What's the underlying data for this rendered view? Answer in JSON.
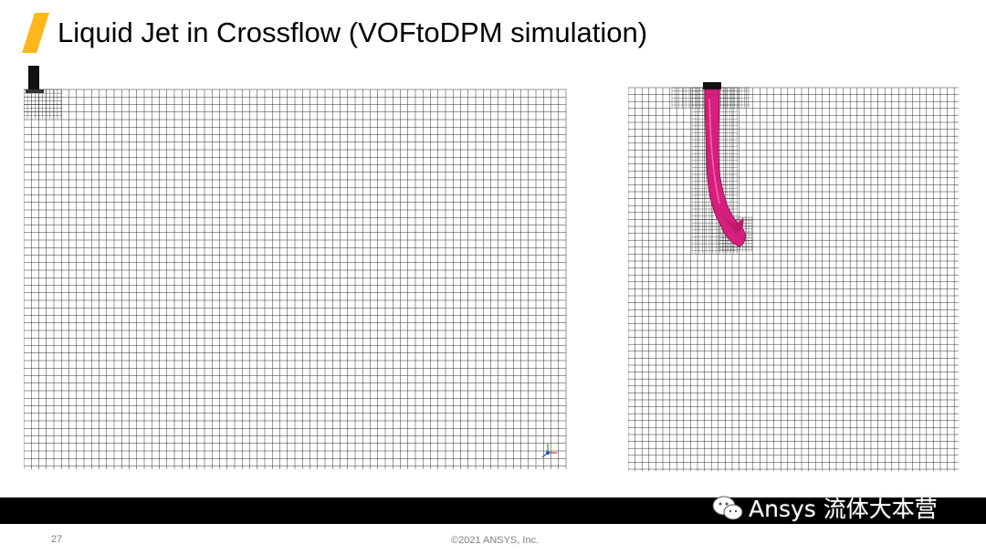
{
  "slide": {
    "title": "Liquid Jet in Crossflow (VOFtoDPM simulation)",
    "page_number": "27",
    "copyright": "©2021 ANSYS, Inc."
  },
  "branding": {
    "watermark_text": "Ansys 流体大本营",
    "logo_text": "Ansys",
    "accent_color": "#ffb71b"
  },
  "figures": {
    "left": {
      "icon": "triad-axes-icon",
      "mesh_color": "#1a1a1a",
      "nozzle_color": "#111111"
    },
    "right": {
      "jet_color": "#d61e7c",
      "mesh_color": "#1a1a1a"
    }
  },
  "colors": {
    "footer_bar": "#000000",
    "footer_text": "#7f7f7f",
    "title_text": "#000000"
  }
}
